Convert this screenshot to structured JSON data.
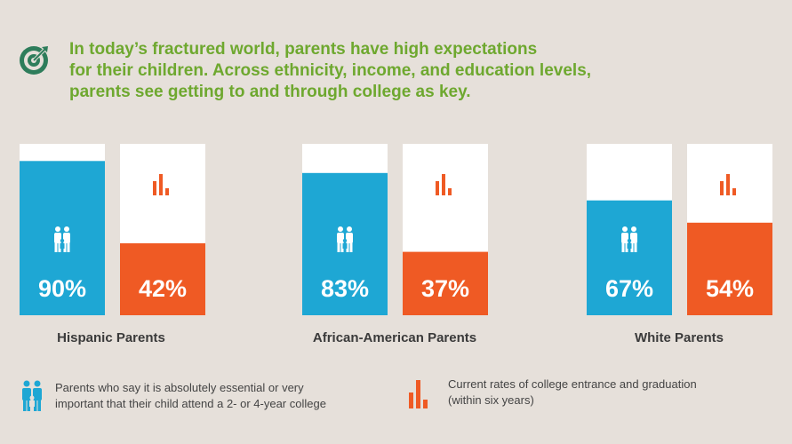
{
  "headline": {
    "lines": [
      "In today’s fractured world, parents have high expectations",
      "for their children. Across ethnicity, income, and education levels,",
      "parents see getting to and through college as key."
    ]
  },
  "colors": {
    "background": "#e6e0da",
    "headline": "#6ea82f",
    "expectations": "#1ea7d4",
    "rates": "#ef5a24",
    "bar_empty": "#ffffff",
    "label": "#3a3a3a"
  },
  "icons": {
    "headline": "target-icon",
    "expectations": "family-icon",
    "rates": "bar-chart-icon"
  },
  "chart_data": {
    "type": "bar",
    "categories": [
      "Hispanic Parents",
      "African-American Parents",
      "White Parents"
    ],
    "series": [
      {
        "values": [
          90,
          83,
          67
        ],
        "value_labels": [
          "90%",
          "83%",
          "67%"
        ]
      },
      {
        "values": [
          42,
          37,
          54
        ],
        "value_labels": [
          "42%",
          "37%",
          "54%"
        ]
      }
    ],
    "ylim": [
      0,
      100
    ]
  },
  "legend": {
    "expectations": {
      "lines": [
        "Parents who say it is absolutely essential or very",
        "important that their child attend a 2- or 4-year college"
      ]
    },
    "rates": {
      "lines": [
        "Current rates of college entrance and graduation",
        "(within six years)"
      ]
    }
  }
}
